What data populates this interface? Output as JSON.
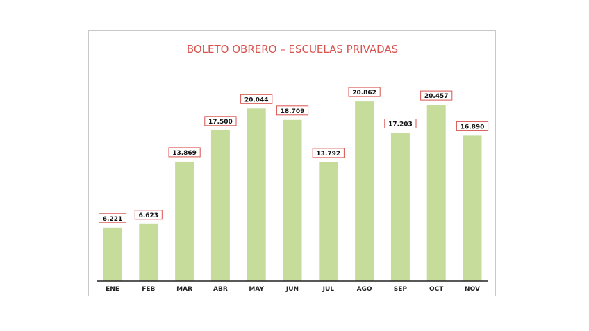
{
  "chart_data": {
    "type": "bar",
    "title": "BOLETO OBRERO – ESCUELAS PRIVADAS",
    "categories": [
      "ENE",
      "FEB",
      "MAR",
      "ABR",
      "MAY",
      "JUN",
      "JUL",
      "AGO",
      "SEP",
      "OCT",
      "NOV"
    ],
    "values": [
      6221,
      6623,
      13869,
      17500,
      20044,
      18709,
      13792,
      20862,
      17203,
      20457,
      16890
    ],
    "value_labels": [
      "6.221",
      "6.623",
      "13.869",
      "17.500",
      "20.044",
      "18.709",
      "13.792",
      "20.862",
      "17.203",
      "20.457",
      "16.890"
    ],
    "xlabel": "",
    "ylabel": "",
    "ylim": [
      0,
      22000
    ],
    "grid": false,
    "legend": "none",
    "colors": {
      "bar": "#c5dc9b",
      "title": "#d9534f",
      "label_border": "#d9534f",
      "axis": "#222222"
    }
  }
}
